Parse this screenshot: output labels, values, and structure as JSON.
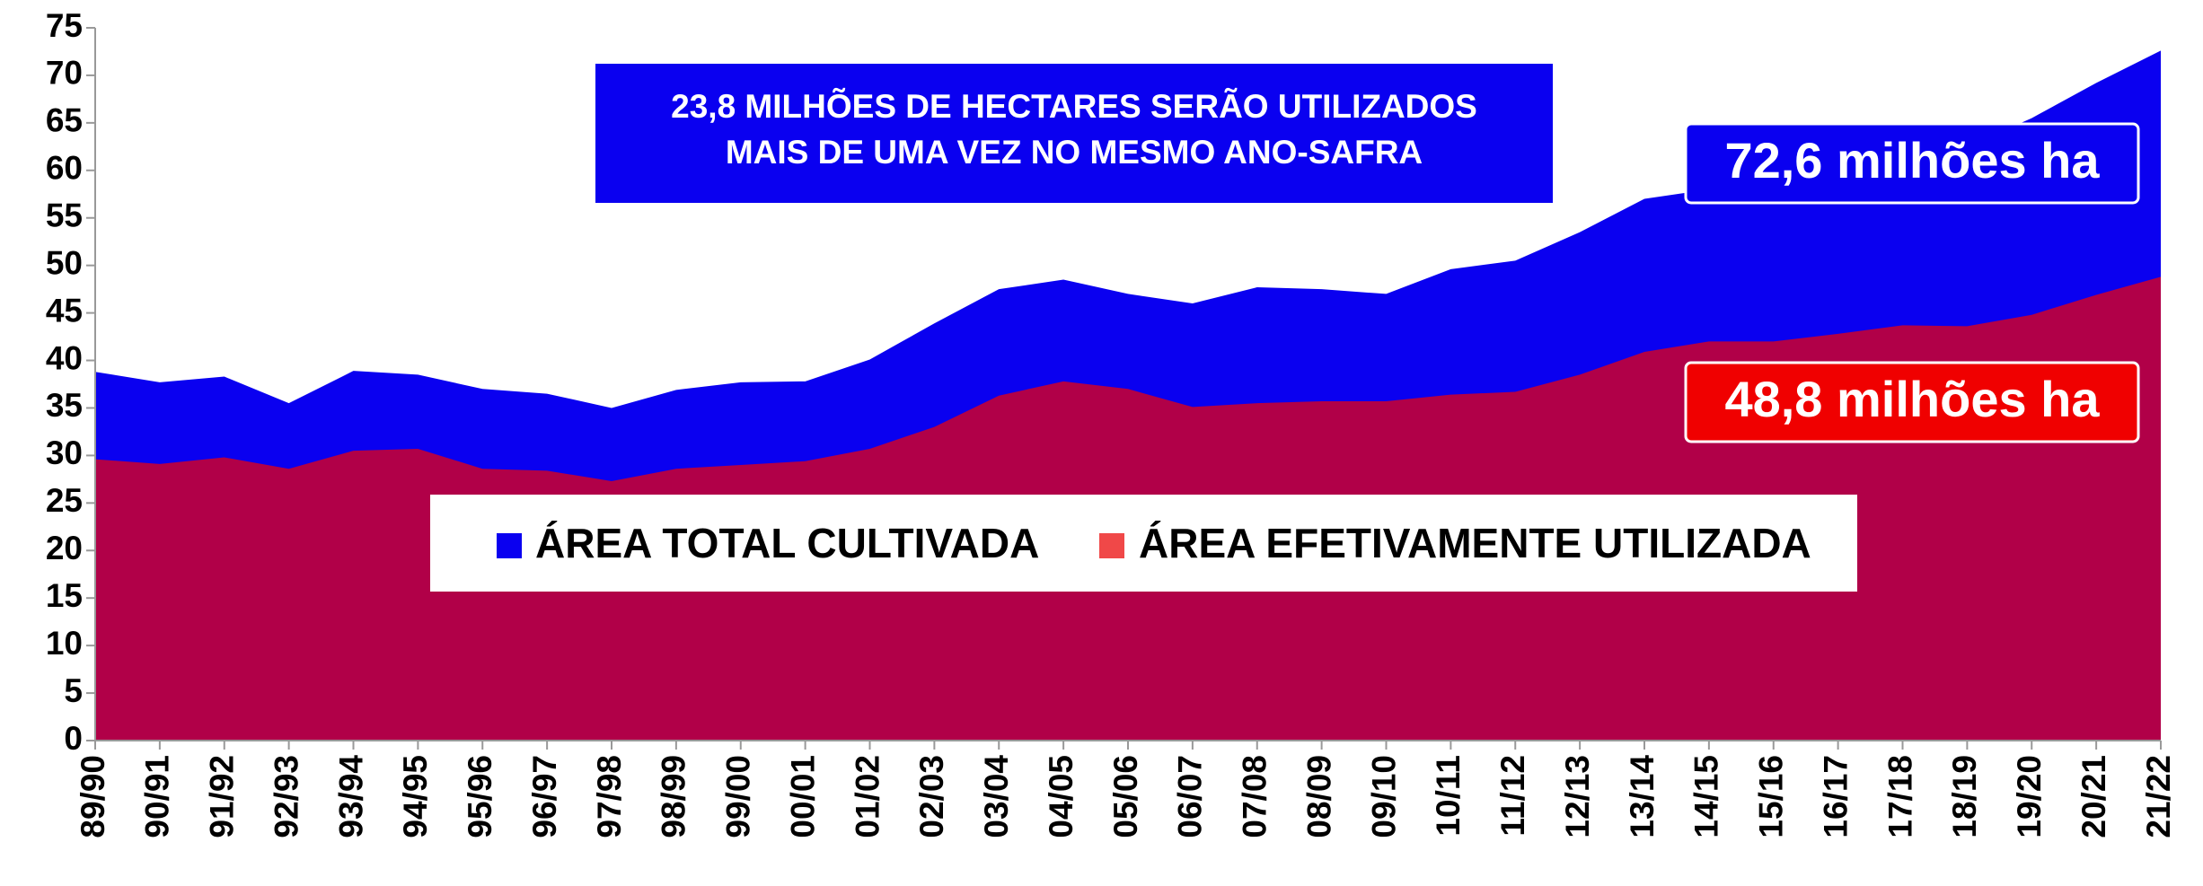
{
  "chart_data": {
    "type": "area",
    "categories": [
      "89/90",
      "90/91",
      "91/92",
      "92/93",
      "93/94",
      "94/95",
      "95/96",
      "96/97",
      "97/98",
      "98/99",
      "99/00",
      "00/01",
      "01/02",
      "02/03",
      "03/04",
      "04/05",
      "05/06",
      "06/07",
      "07/08",
      "08/09",
      "09/10",
      "10/11",
      "11/12",
      "12/13",
      "13/14",
      "14/15",
      "15/16",
      "16/17",
      "17/18",
      "18/19",
      "19/20",
      "20/21",
      "21/22"
    ],
    "series": [
      {
        "name": "ÁREA TOTAL CULTIVADA",
        "color": "#0a00f0",
        "values": [
          38.8,
          37.7,
          38.3,
          35.5,
          38.9,
          38.5,
          37.0,
          36.5,
          35.0,
          36.9,
          37.7,
          37.8,
          40.1,
          43.9,
          47.5,
          48.5,
          47.0,
          46.0,
          47.7,
          47.5,
          47.0,
          49.6,
          50.5,
          53.5,
          57.0,
          58.0,
          58.4,
          60.0,
          61.0,
          62.5,
          65.5,
          69.2,
          72.6
        ]
      },
      {
        "name": "ÁREA EFETIVAMENTE UTILIZADA",
        "color": "#b10048",
        "values": [
          29.6,
          29.1,
          29.8,
          28.6,
          30.5,
          30.7,
          28.6,
          28.4,
          27.3,
          28.6,
          29.0,
          29.4,
          30.7,
          33.0,
          36.3,
          37.8,
          37.0,
          35.1,
          35.5,
          35.7,
          35.7,
          36.4,
          36.7,
          38.5,
          40.9,
          42.0,
          42.0,
          42.8,
          43.7,
          43.6,
          44.8,
          46.9,
          48.8
        ]
      }
    ],
    "ylim": [
      0,
      75
    ],
    "yticks": [
      0,
      5,
      10,
      15,
      20,
      25,
      30,
      35,
      40,
      45,
      50,
      55,
      60,
      65,
      70,
      75
    ],
    "note": [
      "23,8 MILHÕES DE HECTARES SERÃO UTILIZADOS",
      "MAIS DE UMA VEZ NO MESMO ANO-SAFRA"
    ],
    "annotations": [
      "72,6 milhões ha",
      "48,8 milhões ha"
    ]
  }
}
